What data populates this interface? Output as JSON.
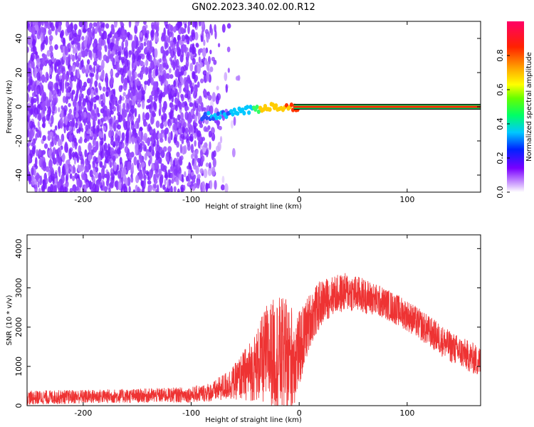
{
  "title": "GN02.2023.340.02.00.R12",
  "chart_data": [
    {
      "type": "heatmap",
      "xlabel": "Height of straight line (km)",
      "ylabel": "Frequency (Hz)",
      "xlim": [
        -252,
        168
      ],
      "ylim": [
        -50,
        50
      ],
      "x_ticks": [
        -200,
        -100,
        0,
        100
      ],
      "y_ticks": [
        -40,
        -20,
        0,
        20,
        40
      ],
      "colorbar": {
        "label": "Normalized spectral amplitude",
        "range": [
          0.0,
          1.0
        ],
        "ticks": [
          "0.0",
          "0.2",
          "0.4",
          "0.6",
          "0.8"
        ]
      },
      "features": {
        "noise_region_x": [
          -252,
          -75
        ],
        "tone_track": {
          "x": [
            -90,
            -75,
            -60,
            -45,
            -30,
            -20,
            -15,
            -10,
            0,
            50,
            100,
            168
          ],
          "freq": [
            -6,
            -5,
            -3,
            -2,
            0,
            0,
            -2,
            0,
            0,
            0,
            0,
            0
          ],
          "amplitude": [
            0.3,
            0.35,
            0.4,
            0.5,
            0.7,
            0.75,
            0.8,
            0.85,
            1.0,
            1.0,
            1.0,
            1.0
          ]
        }
      }
    },
    {
      "type": "line",
      "xlabel": "Height of straight line (km)",
      "ylabel": "SNR (10 * v/v)",
      "xlim": [
        -252,
        168
      ],
      "ylim": [
        0,
        4350
      ],
      "x_ticks": [
        -200,
        -100,
        0,
        100
      ],
      "y_ticks": [
        0,
        1000,
        2000,
        3000,
        4000
      ],
      "series": [
        {
          "color": "#ee3333",
          "envelope_x": [
            -252,
            -200,
            -150,
            -100,
            -80,
            -60,
            -40,
            -30,
            -20,
            -10,
            0,
            10,
            20,
            30,
            45,
            60,
            80,
            100,
            120,
            140,
            168
          ],
          "envelope_mean": [
            200,
            230,
            250,
            280,
            350,
            600,
            1000,
            1300,
            1300,
            1100,
            1400,
            2200,
            2600,
            2800,
            2900,
            2800,
            2600,
            2300,
            1900,
            1500,
            1100
          ],
          "envelope_spread": [
            180,
            180,
            180,
            200,
            250,
            450,
            900,
            1300,
            1500,
            1600,
            1000,
            700,
            600,
            500,
            500,
            450,
            400,
            400,
            400,
            400,
            400
          ]
        }
      ]
    }
  ]
}
